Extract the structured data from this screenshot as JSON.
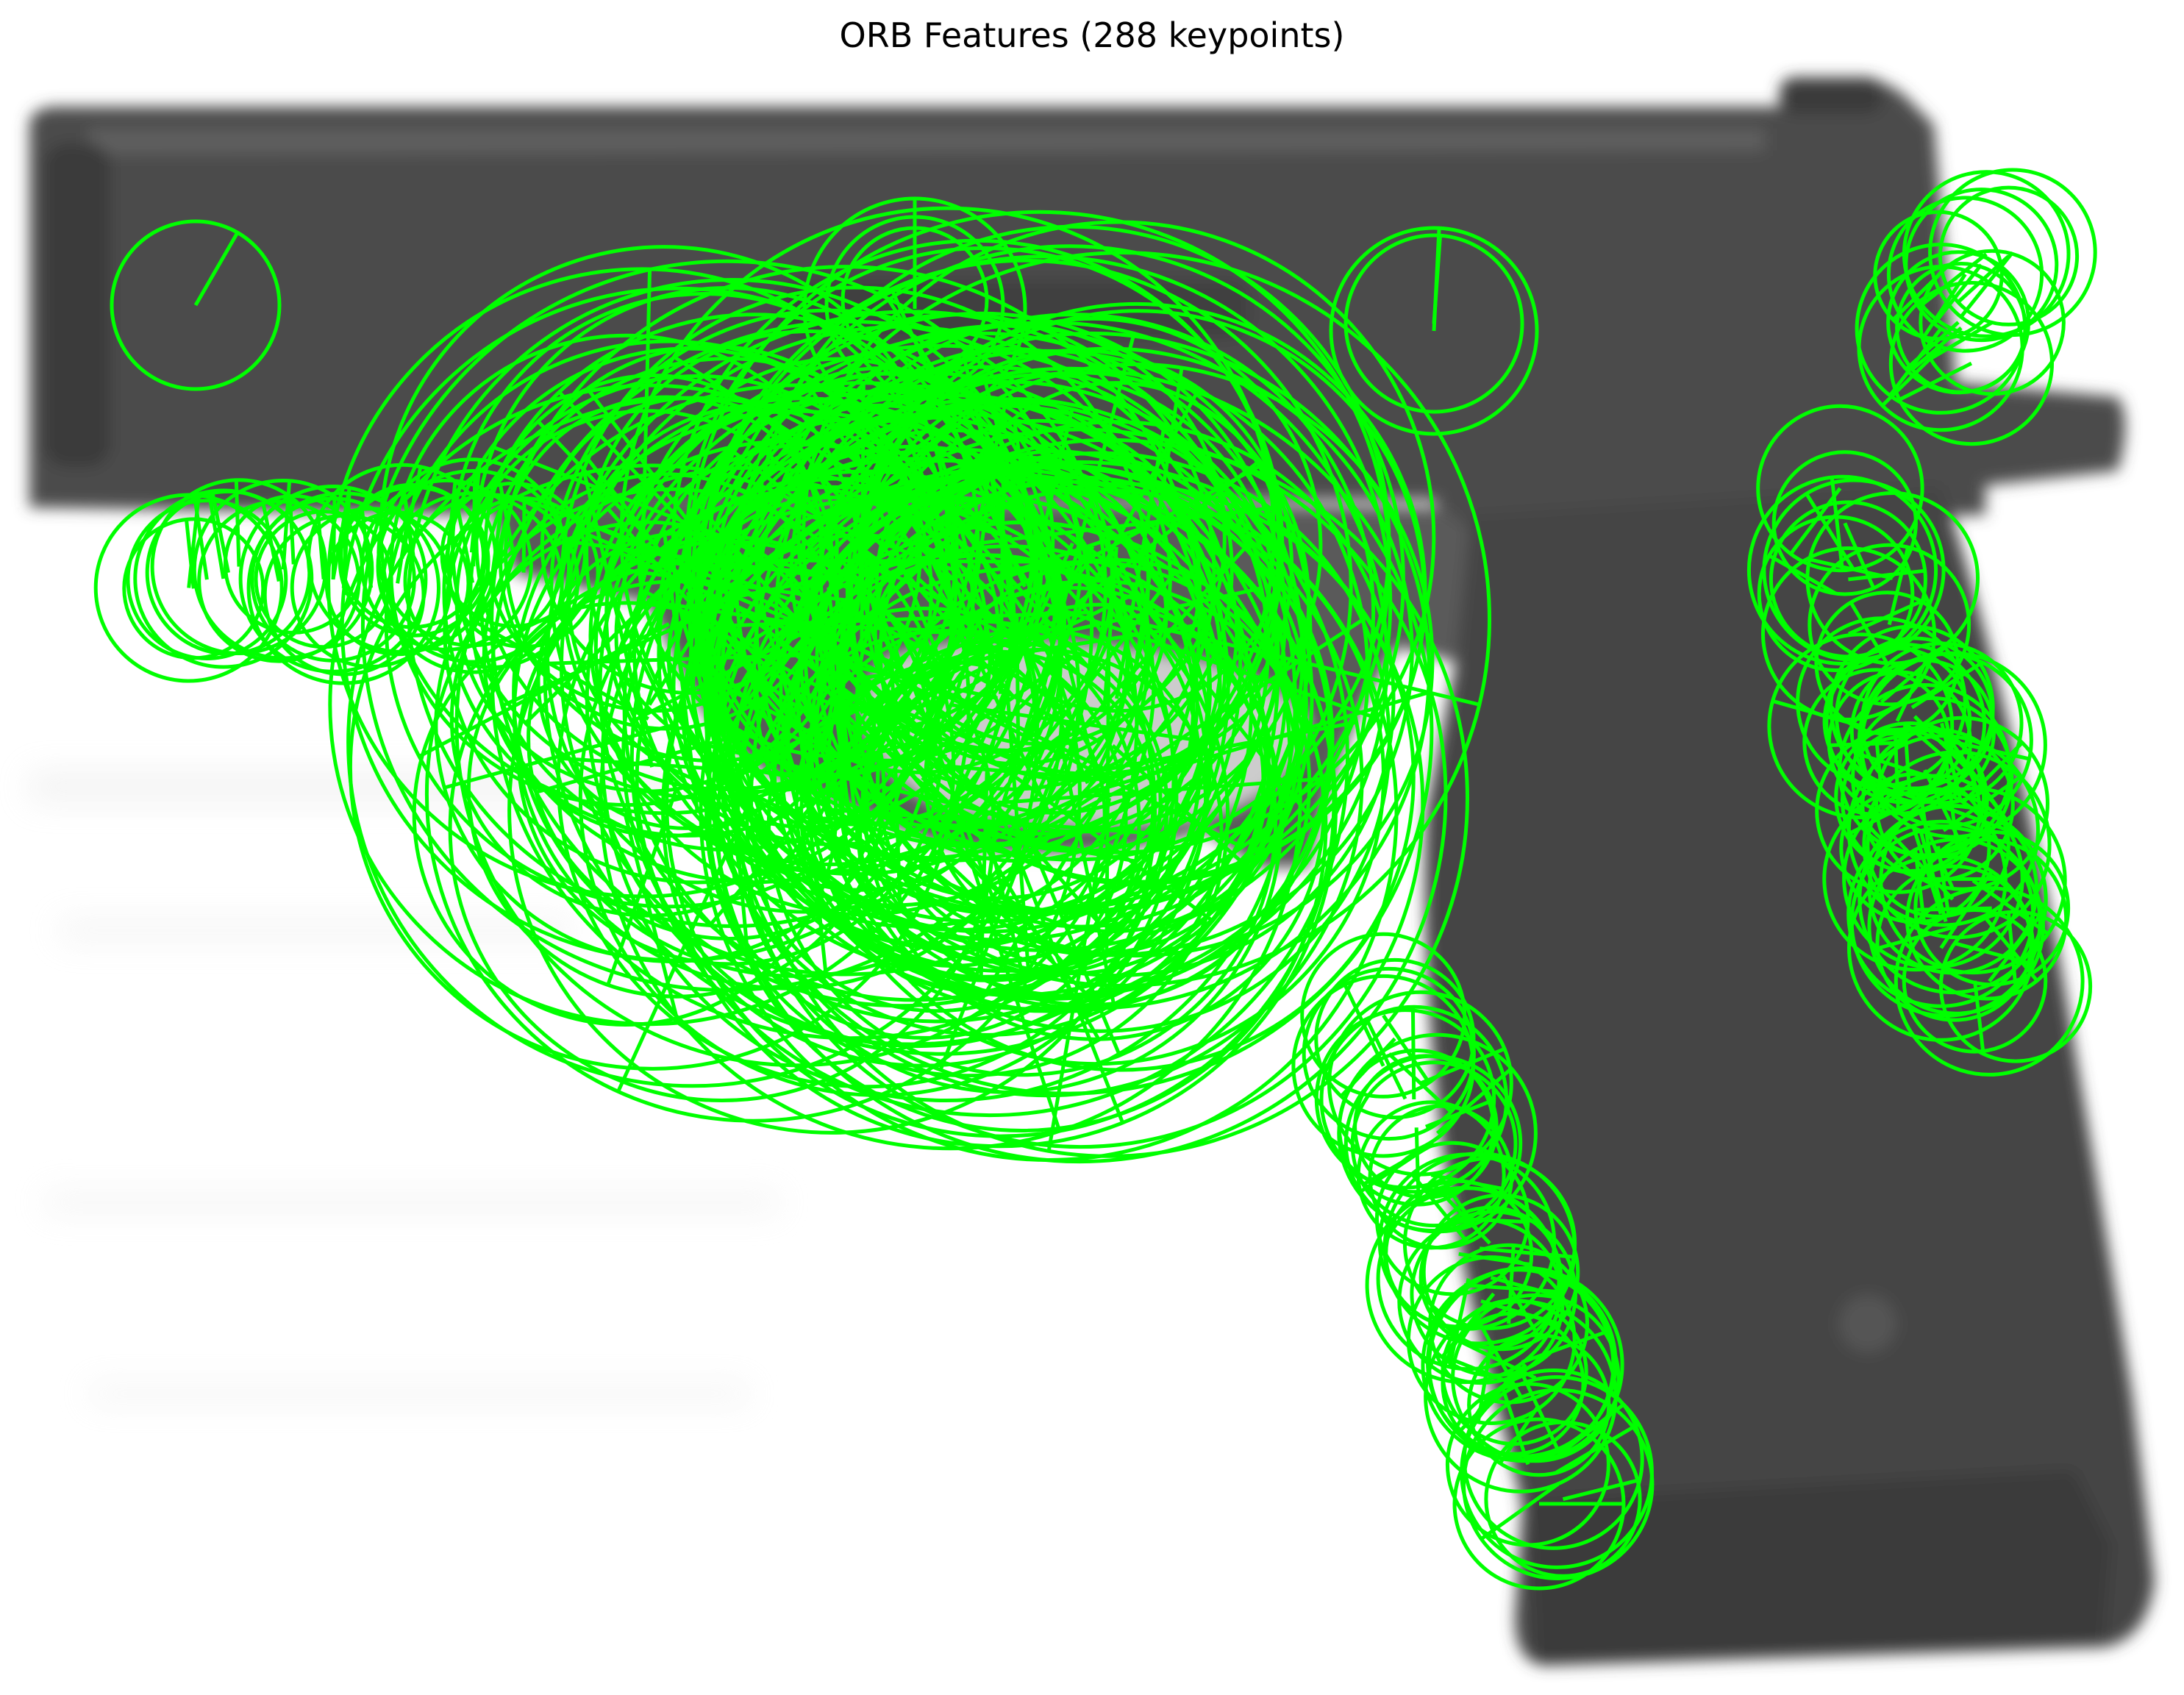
{
  "figure": {
    "title": "ORB Features (288 keypoints)"
  },
  "image": {
    "subject": "handgun",
    "background_color": "#ffffff",
    "object_color": "#4a4a4a",
    "keypoint_color": "#00ff00",
    "axes": "off"
  }
}
